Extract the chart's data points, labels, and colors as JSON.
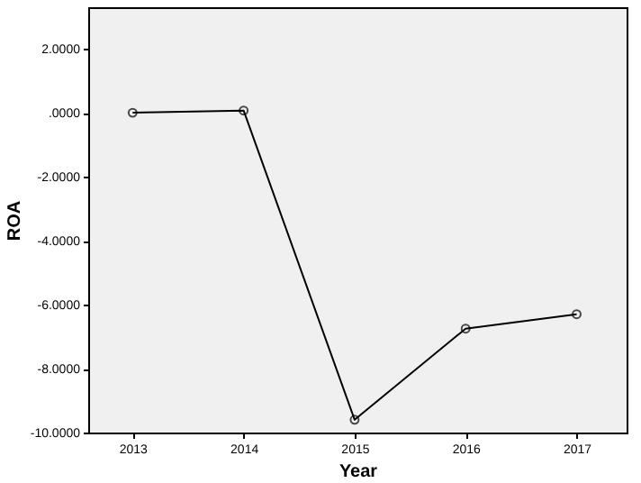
{
  "chart_data": {
    "type": "line",
    "xlabel": "Year",
    "ylabel": "ROA",
    "categories": [
      "2013",
      "2014",
      "2015",
      "2016",
      "2017"
    ],
    "series": [
      {
        "color": "#000000",
        "values": [
          0.0,
          0.07,
          -9.6,
          -6.75,
          -6.3
        ]
      }
    ],
    "ylim": [
      -10,
      3.3
    ],
    "yticks": [
      {
        "value": -10,
        "label": "-10.0000"
      },
      {
        "value": -8,
        "label": "-8.0000"
      },
      {
        "value": -6,
        "label": "-6.0000"
      },
      {
        "value": -4,
        "label": "-4.0000"
      },
      {
        "value": -2,
        "label": "-2.0000"
      },
      {
        "value": 0,
        "label": ".0000"
      },
      {
        "value": 2,
        "label": "2.0000"
      }
    ],
    "grid": false,
    "marker": "circle",
    "line_style": "solid",
    "legend": false
  }
}
